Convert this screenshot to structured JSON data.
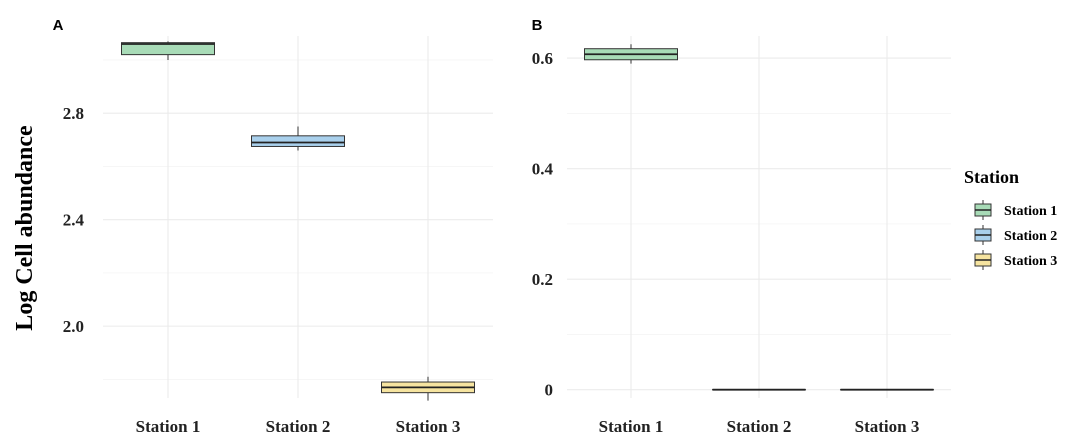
{
  "chart_data": [
    {
      "panel": "A",
      "type": "box",
      "categories": [
        "Station 1",
        "Station 2",
        "Station 3"
      ],
      "ylabel": "Log Cell abundance",
      "ylim": [
        1.73,
        3.09
      ],
      "yticks": [
        2.0,
        2.4,
        2.8
      ],
      "ytick_labels": [
        "2.0",
        "2.4",
        "2.8"
      ],
      "grid": true,
      "boxes": [
        {
          "category": "Station 1",
          "min": 3.0,
          "q1": 3.02,
          "median": 3.06,
          "q3": 3.065,
          "max": 3.07,
          "color": "#a8dbb7"
        },
        {
          "category": "Station 2",
          "min": 2.66,
          "q1": 2.675,
          "median": 2.69,
          "q3": 2.715,
          "max": 2.75,
          "color": "#a9d0ec"
        },
        {
          "category": "Station 3",
          "min": 1.72,
          "q1": 1.75,
          "median": 1.77,
          "q3": 1.79,
          "max": 1.81,
          "color": "#f6e4a0"
        }
      ]
    },
    {
      "panel": "B",
      "type": "box",
      "categories": [
        "Station 1",
        "Station 2",
        "Station 3"
      ],
      "ylabel": "",
      "ylim": [
        -0.015,
        0.64
      ],
      "yticks": [
        0,
        0.2,
        0.4,
        0.6
      ],
      "ytick_labels": [
        "0",
        "0.2",
        "0.4",
        "0.6"
      ],
      "grid": true,
      "boxes": [
        {
          "category": "Station 1",
          "min": 0.59,
          "q1": 0.597,
          "median": 0.607,
          "q3": 0.617,
          "max": 0.625,
          "color": "#a8dbb7"
        },
        {
          "category": "Station 2",
          "min": 0.0,
          "q1": 0.0,
          "median": 0.0,
          "q3": 0.0,
          "max": 0.0,
          "color": "#a9d0ec"
        },
        {
          "category": "Station 3",
          "min": 0.0,
          "q1": 0.0,
          "median": 0.0,
          "q3": 0.0,
          "max": 0.0,
          "color": "#f6e4a0"
        }
      ]
    }
  ],
  "legend": {
    "title": "Station",
    "position": "right",
    "items": [
      {
        "label": "Station 1",
        "color": "#a8dbb7"
      },
      {
        "label": "Station 2",
        "color": "#a9d0ec"
      },
      {
        "label": "Station 3",
        "color": "#f6e4a0"
      }
    ]
  }
}
